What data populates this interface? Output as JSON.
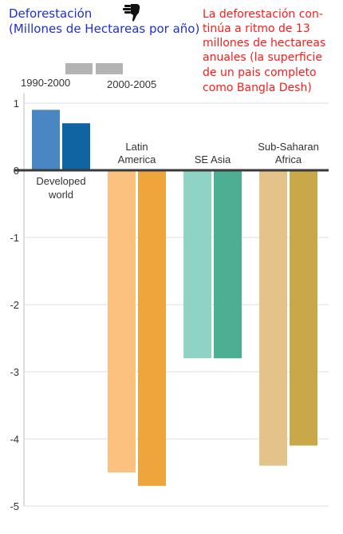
{
  "title": {
    "line1": "Deforestación",
    "line2": "(Millones de Hectareas por año)",
    "icon": "thumbs-down-icon"
  },
  "note": {
    "lines": [
      "La deforestación con-",
      "tinúa a ritmo de 13",
      "millones de hectareas",
      "anuales (la superficie",
      "de un pais completo",
      "como Bangla Desh)"
    ]
  },
  "chart_data": {
    "type": "bar",
    "categories": [
      {
        "lines": [
          "Developed",
          "world"
        ],
        "position": "below-zero"
      },
      {
        "lines": [
          "Latin",
          "America"
        ],
        "position": "above-zero"
      },
      {
        "lines": [
          "SE Asia"
        ],
        "position": "above-zero"
      },
      {
        "lines": [
          "Sub-Saharan",
          "Africa"
        ],
        "position": "above-zero"
      }
    ],
    "series": [
      {
        "name": "1990-2000",
        "values": [
          0.9,
          -4.5,
          -2.8,
          -4.4
        ]
      },
      {
        "name": "2000-2005",
        "values": [
          0.7,
          -4.7,
          -2.8,
          -4.1
        ]
      }
    ],
    "colors": [
      [
        "#4a86c2",
        "#0f64a1"
      ],
      [
        "#fcc17f",
        "#efa53c"
      ],
      [
        "#8fd3c5",
        "#4caf93"
      ],
      [
        "#e3c38a",
        "#c9a849"
      ]
    ],
    "legend_swatch_color": "#b3b3b3",
    "yticks": [
      1,
      0,
      -1,
      -2,
      -3,
      -4,
      -5
    ],
    "ylim": [
      -5,
      1.15
    ],
    "grid": true
  }
}
